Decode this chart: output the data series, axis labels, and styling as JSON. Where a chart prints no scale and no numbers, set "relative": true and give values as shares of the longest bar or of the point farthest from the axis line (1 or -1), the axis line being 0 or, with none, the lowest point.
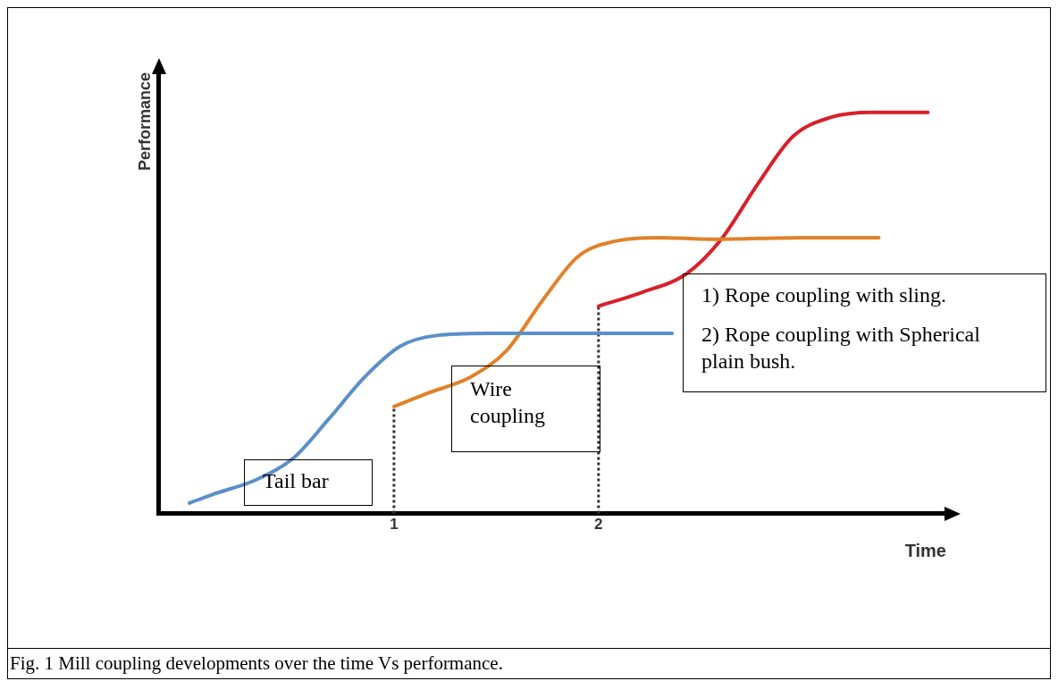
{
  "chart_data": {
    "type": "line",
    "relative": true,
    "xlabel": "Time",
    "ylabel": "Performance",
    "xlim": [
      -0.15,
      3.7
    ],
    "xticks": [
      1,
      2
    ],
    "grid": false,
    "legend": false,
    "marker": "none",
    "line_style": "solid",
    "series": [
      {
        "color": "#5b8fc9",
        "x": [
          0.0,
          0.11,
          0.33,
          0.51,
          0.68,
          0.86,
          1.03,
          1.21,
          1.47,
          1.9,
          2.36
        ],
        "values": [
          0.026,
          0.047,
          0.085,
          0.139,
          0.235,
          0.342,
          0.417,
          0.444,
          0.449,
          0.449,
          0.449
        ]
      },
      {
        "color": "#e0822a",
        "x": [
          1.0,
          1.16,
          1.38,
          1.55,
          1.73,
          1.9,
          2.08,
          2.3,
          2.56,
          3.0,
          3.37
        ],
        "values": [
          0.267,
          0.299,
          0.342,
          0.406,
          0.534,
          0.641,
          0.679,
          0.688,
          0.684,
          0.688,
          0.688
        ]
      },
      {
        "color": "#d9202a",
        "x": [
          2.0,
          2.21,
          2.43,
          2.6,
          2.78,
          2.95,
          3.13,
          3.34,
          3.61
        ],
        "values": [
          0.517,
          0.551,
          0.598,
          0.684,
          0.823,
          0.94,
          0.987,
          1.0,
          1.0
        ]
      }
    ],
    "ref_lines": [
      {
        "axis": "x",
        "value": 1,
        "line_style": "dotted",
        "color": "#333333"
      },
      {
        "axis": "x",
        "value": 2,
        "line_style": "dotted",
        "color": "#333333"
      }
    ],
    "annotations": [
      "Tail bar",
      "Wire coupling",
      "1) Rope coupling with sling.",
      "2) Rope coupling with Spherical plain bush.",
      "Fig. 1 Mill coupling developments over the time Vs performance."
    ]
  }
}
